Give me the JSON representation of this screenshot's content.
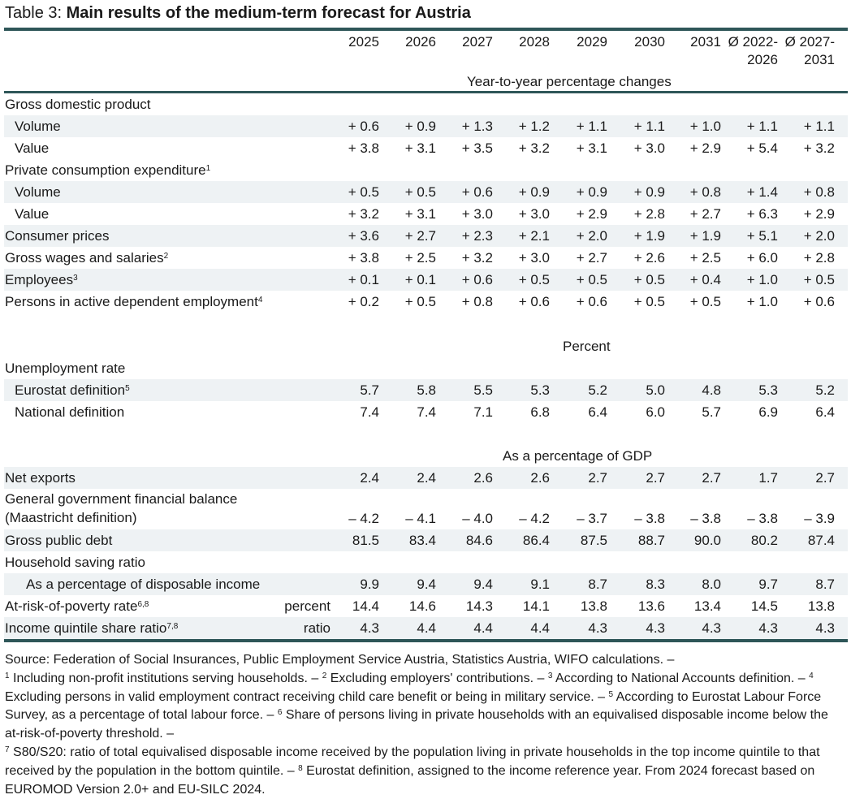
{
  "title": {
    "prefix": "Table 3: ",
    "main": "Main results of the medium-term forecast for Austria"
  },
  "columns": [
    "2025",
    "2026",
    "2027",
    "2028",
    "2029",
    "2030",
    "2031",
    "Ø 2022-",
    "Ø 2027-"
  ],
  "columns_line2": [
    "",
    "",
    "",
    "",
    "",
    "",
    "",
    "2026",
    "2031"
  ],
  "sections": {
    "pct_changes": "Year-to-year percentage changes",
    "percent": "Percent",
    "gdp_share": "As a percentage of GDP"
  },
  "rows": [
    {
      "label": "Gross domestic product",
      "sup": "",
      "level": 0,
      "values": []
    },
    {
      "label": "Volume",
      "sup": "",
      "level": 1,
      "values": [
        "+ 0.6",
        "+ 0.9",
        "+ 1.3",
        "+ 1.2",
        "+ 1.1",
        "+ 1.1",
        "+ 1.0",
        "+ 1.1",
        "+ 1.1"
      ]
    },
    {
      "label": "Value",
      "sup": "",
      "level": 1,
      "values": [
        "+ 3.8",
        "+ 3.1",
        "+ 3.5",
        "+ 3.2",
        "+ 3.1",
        "+ 3.0",
        "+ 2.9",
        "+ 5.4",
        "+ 3.2"
      ]
    },
    {
      "label": "Private consumption expenditure",
      "sup": "1",
      "level": 0,
      "values": []
    },
    {
      "label": "Volume",
      "sup": "",
      "level": 1,
      "values": [
        "+ 0.5",
        "+ 0.5",
        "+ 0.6",
        "+ 0.9",
        "+ 0.9",
        "+ 0.9",
        "+ 0.8",
        "+ 1.4",
        "+ 0.8"
      ]
    },
    {
      "label": "Value",
      "sup": "",
      "level": 1,
      "values": [
        "+ 3.2",
        "+ 3.1",
        "+ 3.0",
        "+ 3.0",
        "+ 2.9",
        "+ 2.8",
        "+ 2.7",
        "+ 6.3",
        "+ 2.9"
      ]
    },
    {
      "label": "Consumer prices",
      "sup": "",
      "level": 0,
      "values": [
        "+ 3.6",
        "+ 2.7",
        "+ 2.3",
        "+ 2.1",
        "+ 2.0",
        "+ 1.9",
        "+ 1.9",
        "+ 5.1",
        "+ 2.0"
      ]
    },
    {
      "label": "Gross wages and salaries",
      "sup": "2",
      "level": 0,
      "values": [
        "+ 3.8",
        "+ 2.5",
        "+ 3.2",
        "+ 3.0",
        "+ 2.7",
        "+ 2.6",
        "+ 2.5",
        "+ 6.0",
        "+ 2.8"
      ]
    },
    {
      "label": "Employees",
      "sup": "3",
      "level": 0,
      "values": [
        "+ 0.1",
        "+ 0.1",
        "+ 0.6",
        "+ 0.5",
        "+ 0.5",
        "+ 0.5",
        "+ 0.4",
        "+ 1.0",
        "+ 0.5"
      ]
    },
    {
      "label": "Persons in active dependent employment",
      "sup": "4",
      "level": 0,
      "values": [
        "+ 0.2",
        "+ 0.5",
        "+ 0.8",
        "+ 0.6",
        "+ 0.6",
        "+ 0.5",
        "+ 0.5",
        "+ 1.0",
        "+ 0.6"
      ]
    },
    {
      "label": "Unemployment rate",
      "sup": "",
      "level": 0,
      "values": []
    },
    {
      "label": "Eurostat definition",
      "sup": "5",
      "level": 1,
      "values": [
        "5.7",
        "5.8",
        "5.5",
        "5.3",
        "5.2",
        "5.0",
        "4.8",
        "5.3",
        "5.2"
      ]
    },
    {
      "label": "National definition",
      "sup": "",
      "level": 1,
      "values": [
        "7.4",
        "7.4",
        "7.1",
        "6.8",
        "6.4",
        "6.0",
        "5.7",
        "6.9",
        "6.4"
      ]
    },
    {
      "label": "Net exports",
      "sup": "",
      "level": 0,
      "values": [
        "2.4",
        "2.4",
        "2.6",
        "2.6",
        "2.7",
        "2.7",
        "2.7",
        "1.7",
        "2.7"
      ]
    },
    {
      "label": "General government financial balance",
      "label2": "(Maastricht definition)",
      "sup": "",
      "level": 0,
      "values": [
        "– 4.2",
        "– 4.1",
        "– 4.0",
        "– 4.2",
        "– 3.7",
        "– 3.8",
        "– 3.8",
        "– 3.8",
        "– 3.9"
      ]
    },
    {
      "label": "Gross public debt",
      "sup": "",
      "level": 0,
      "values": [
        "81.5",
        "83.4",
        "84.6",
        "86.4",
        "87.5",
        "88.7",
        "90.0",
        "80.2",
        "87.4"
      ]
    },
    {
      "label": "Household saving ratio",
      "sup": "",
      "level": 0,
      "values": []
    },
    {
      "label": "As a percentage of disposable income",
      "sup": "",
      "level": 2,
      "values": [
        "9.9",
        "9.4",
        "9.4",
        "9.1",
        "8.7",
        "8.3",
        "8.0",
        "9.7",
        "8.7"
      ]
    },
    {
      "label": "At-risk-of-poverty rate",
      "sup": "6,8",
      "unit": "percent",
      "level": 0,
      "values": [
        "14.4",
        "14.6",
        "14.3",
        "14.1",
        "13.8",
        "13.6",
        "13.4",
        "14.5",
        "13.8"
      ]
    },
    {
      "label": "Income quintile share ratio",
      "sup": "7,8",
      "unit": "ratio",
      "level": 0,
      "values": [
        "4.3",
        "4.4",
        "4.4",
        "4.4",
        "4.3",
        "4.3",
        "4.3",
        "4.3",
        "4.3"
      ]
    }
  ],
  "notes": {
    "source": "Source: Federation of Social Insurances, Public Employment Service Austria, Statistics Austria, WIFO calculations. –",
    "n1": "Including non-profit institutions serving households. –",
    "n2": "Excluding employers' contributions. –",
    "n3": "According to National Accounts definition. –",
    "n4": "Excluding persons in valid employment contract receiving child care benefit or being in mili­tary service. –",
    "n5": "According to Eurostat Labour Force Survey, as a percentage of total labour force. –",
    "n6": "Share of per­sons living in private households with an equivalised disposable income below the at-risk-of-poverty threshold. –",
    "n7": "S80/S20: ratio of total equivalised disposable income received by the population living in private households in the top income quintile to that received by the population in the bottom quintile. –",
    "n8": "Eurostat definition,  assigned to the income reference year. From 2024 forecast based on EUROMOD Version 2.0+ and EU-SILC 2024."
  }
}
